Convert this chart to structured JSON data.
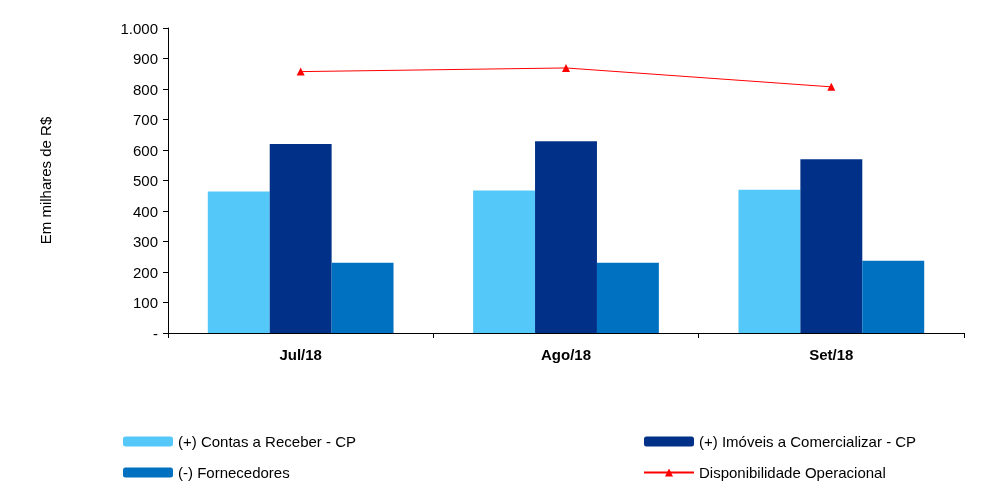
{
  "chart_data": {
    "type": "bar",
    "ylabel": "Em milhares de R$",
    "categories": [
      "Jul/18",
      "Ago/18",
      "Set/18"
    ],
    "series": [
      {
        "name": "(+) Contas a Receber - CP",
        "color": "#55c8fa",
        "values": [
          464,
          467,
          470
        ]
      },
      {
        "name": "(+) Imóveis a Comercializar - CP",
        "color": "#003087",
        "values": [
          620,
          629,
          570
        ]
      },
      {
        "name": "(-) Fornecedores",
        "color": "#0070c0",
        "values": [
          230,
          230,
          237
        ]
      },
      {
        "name": "Disponibilidade Operacional",
        "type": "line",
        "color": "#ff0000",
        "values": [
          857,
          869,
          807
        ]
      }
    ],
    "ylim": [
      0,
      1000
    ],
    "yticks": [
      {
        "value": 0,
        "label": "-"
      },
      100,
      200,
      300,
      400,
      500,
      600,
      700,
      800,
      900,
      {
        "value": 1000,
        "label": "1.000"
      }
    ],
    "grid": false,
    "legend": "bottom",
    "marker": "triangle",
    "line_style": "solid"
  }
}
